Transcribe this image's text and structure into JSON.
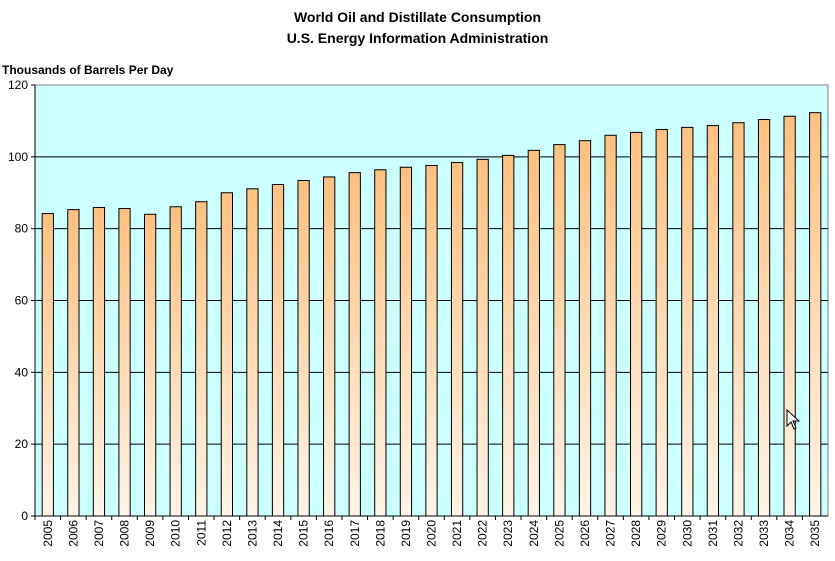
{
  "chart_data": {
    "type": "bar",
    "title": "World Oil and Distillate Consumption",
    "subtitle": "U.S. Energy Information Administration",
    "ylabel": "Thousands of Barrels Per Day",
    "xlabel": "",
    "ylim": [
      0,
      120
    ],
    "yticks": [
      0,
      20,
      40,
      60,
      80,
      100,
      120
    ],
    "grid": true,
    "categories": [
      "2005",
      "2006",
      "2007",
      "2008",
      "2009",
      "2010",
      "2011",
      "2012",
      "2013",
      "2014",
      "2015",
      "2016",
      "2017",
      "2018",
      "2019",
      "2020",
      "2021",
      "2022",
      "2023",
      "2024",
      "2025",
      "2026",
      "2027",
      "2028",
      "2029",
      "2030",
      "2031",
      "2032",
      "2033",
      "2034",
      "2035"
    ],
    "values": [
      84.2,
      85.3,
      85.9,
      85.6,
      84.0,
      86.1,
      87.5,
      90.0,
      91.1,
      92.3,
      93.4,
      94.4,
      95.6,
      96.4,
      97.1,
      97.6,
      98.4,
      99.3,
      100.4,
      101.8,
      103.4,
      104.5,
      106.0,
      106.8,
      107.6,
      108.2,
      108.7,
      109.5,
      110.4,
      111.3,
      112.3
    ],
    "colors": {
      "plot_bg": "#ccffff",
      "bar_top": "#ffc080",
      "bar_bottom": "#fff4e8",
      "grid": "#000000"
    }
  }
}
